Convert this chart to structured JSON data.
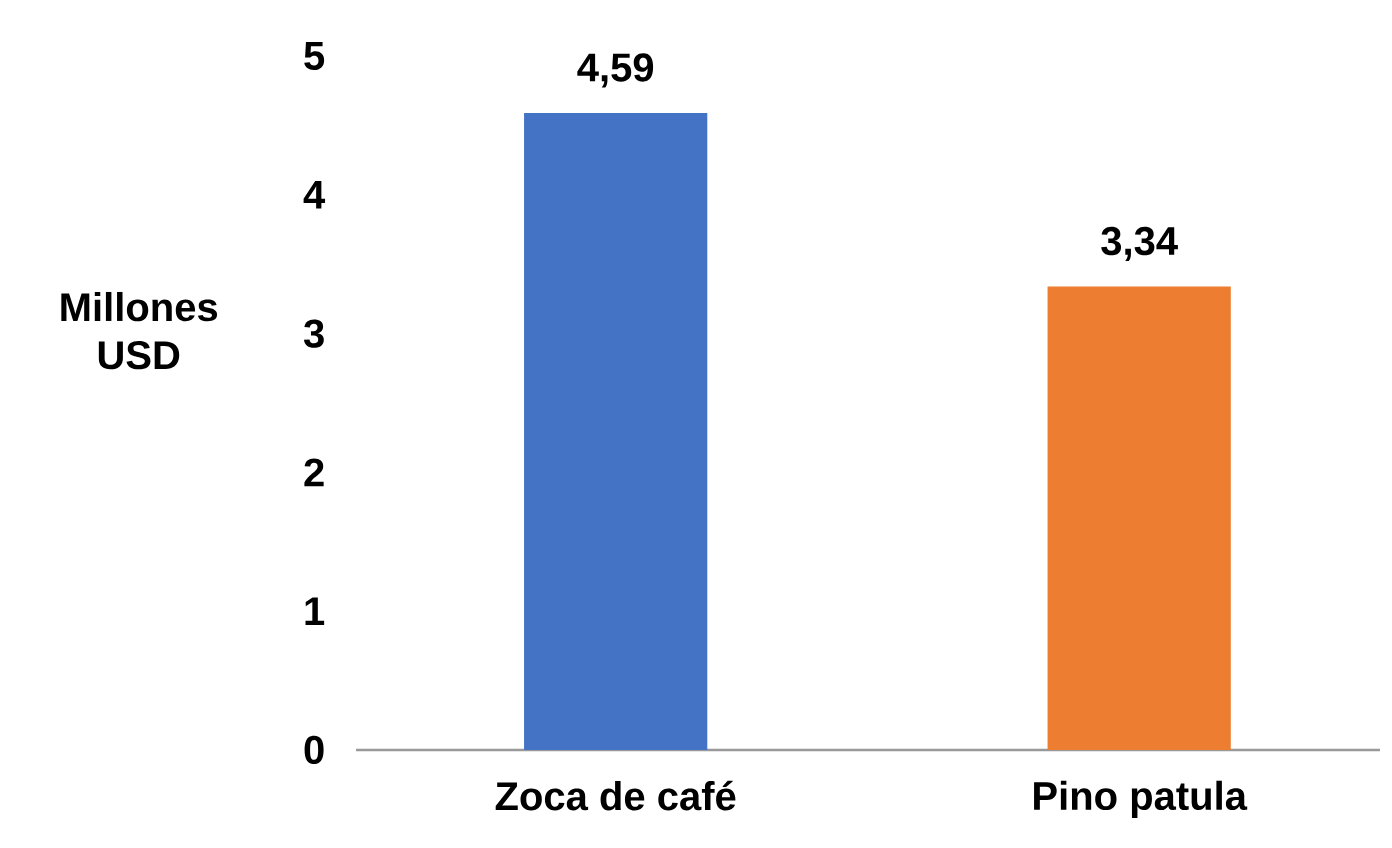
{
  "chart_data": {
    "type": "bar",
    "ylabel": "Millones USD",
    "categories": [
      "Zoca de café",
      "Pino patula"
    ],
    "values": [
      4.59,
      3.34
    ],
    "colors": [
      "#4472c4",
      "#ed7d31"
    ],
    "value_labels": [
      "4,59",
      "3,34"
    ],
    "ylim": [
      0,
      5
    ],
    "yticks": [
      0,
      1,
      2,
      3,
      4,
      5
    ]
  }
}
